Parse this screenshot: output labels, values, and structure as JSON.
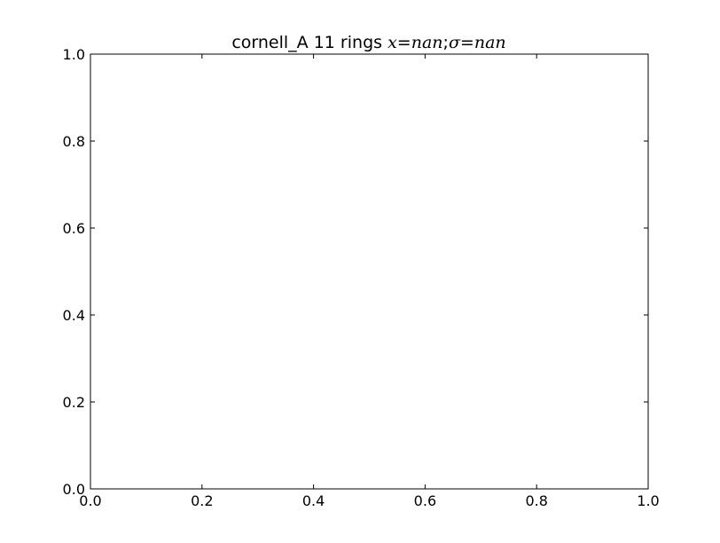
{
  "chart_data": {
    "type": "line",
    "title": {
      "prefix": "cornell_A  11 rings ",
      "math_x": "x",
      "eq1": "=",
      "val1": "nan",
      "sep": ";",
      "math_sigma": "σ",
      "eq2": "=",
      "val2": "nan"
    },
    "xlabel": "",
    "ylabel": "",
    "xlim": [
      0.0,
      1.0
    ],
    "ylim": [
      0.0,
      1.0
    ],
    "x_ticks": [
      0.0,
      0.2,
      0.4,
      0.6,
      0.8,
      1.0
    ],
    "y_ticks": [
      0.0,
      0.2,
      0.4,
      0.6,
      0.8,
      1.0
    ],
    "x_tick_labels": [
      "0.0",
      "0.2",
      "0.4",
      "0.6",
      "0.8",
      "1.0"
    ],
    "y_tick_labels": [
      "0.0",
      "0.2",
      "0.4",
      "0.6",
      "0.8",
      "1.0"
    ],
    "grid": false,
    "series": []
  }
}
